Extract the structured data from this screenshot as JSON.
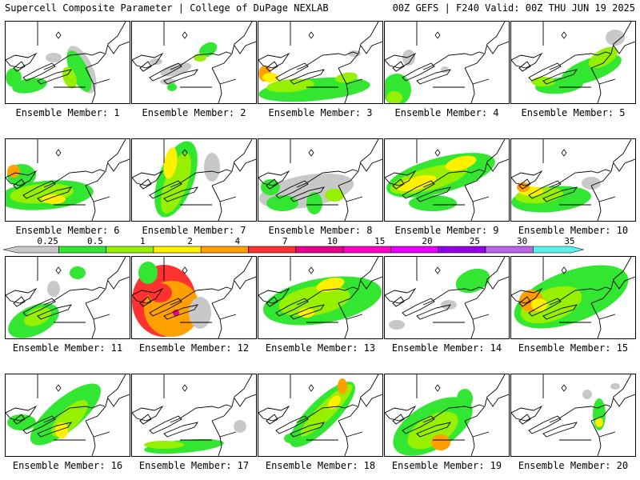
{
  "header": {
    "left": "Supercell Composite Parameter | College of DuPage NEXLAB",
    "right": "00Z GEFS | F240 Valid: 00Z THU JUN 19 2025"
  },
  "colors": {
    "bins": [
      "#c8c8c8",
      "#32e632",
      "#96f000",
      "#fff000",
      "#ffa000",
      "#ff3232",
      "#e6008c",
      "#ff00c8",
      "#e600ff",
      "#9600e6",
      "#be64e6",
      "#5af0f0"
    ],
    "gray": "#c8c8c8",
    "green": "#32e632",
    "lime": "#96f000",
    "yellow": "#fff000",
    "orange": "#ffa000",
    "red": "#ff3232",
    "magenta": "#e6008c"
  },
  "colorbar": {
    "ticks": [
      "0.25",
      "0.5",
      "1",
      "2",
      "4",
      "7",
      "10",
      "15",
      "20",
      "25",
      "30",
      "35"
    ]
  },
  "map": {
    "icon": "diamond-marker-icon"
  },
  "members": [
    {
      "label": "Ensemble Member: 1"
    },
    {
      "label": "Ensemble Member: 2"
    },
    {
      "label": "Ensemble Member: 3"
    },
    {
      "label": "Ensemble Member: 4"
    },
    {
      "label": "Ensemble Member: 5"
    },
    {
      "label": "Ensemble Member: 6"
    },
    {
      "label": "Ensemble Member: 7"
    },
    {
      "label": "Ensemble Member: 8"
    },
    {
      "label": "Ensemble Member: 9"
    },
    {
      "label": "Ensemble Member: 10"
    },
    {
      "label": "Ensemble Member: 11"
    },
    {
      "label": "Ensemble Member: 12"
    },
    {
      "label": "Ensemble Member: 13"
    },
    {
      "label": "Ensemble Member: 14"
    },
    {
      "label": "Ensemble Member: 15"
    },
    {
      "label": "Ensemble Member: 16"
    },
    {
      "label": "Ensemble Member: 17"
    },
    {
      "label": "Ensemble Member: 18"
    },
    {
      "label": "Ensemble Member: 19"
    },
    {
      "label": "Ensemble Member: 20"
    }
  ]
}
